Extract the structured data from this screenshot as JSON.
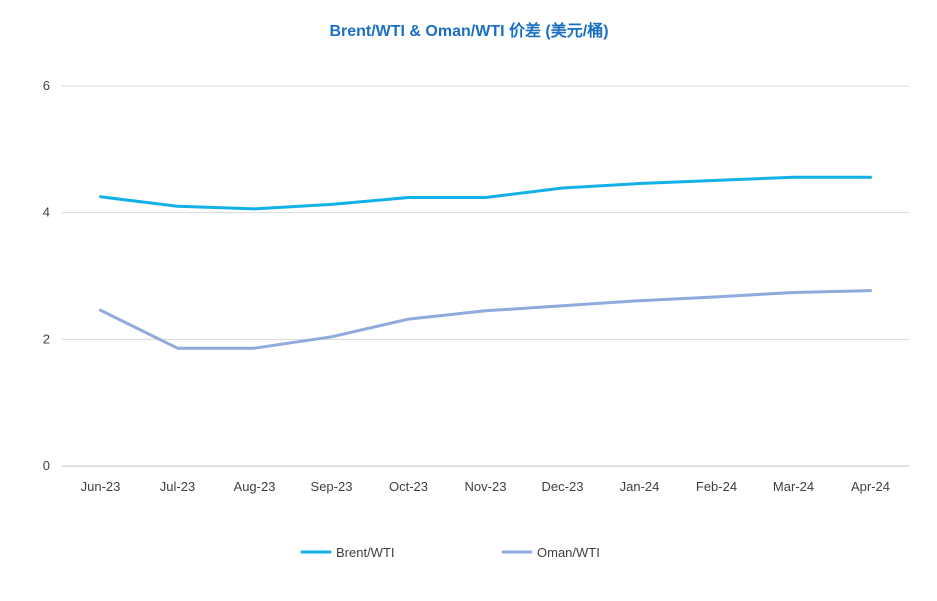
{
  "chart_data": {
    "type": "line",
    "title": "Brent/WTI & Oman/WTI 价差 (美元/桶)",
    "xlabel": "",
    "ylabel": "",
    "categories": [
      "Jun-23",
      "Jul-23",
      "Aug-23",
      "Sep-23",
      "Oct-23",
      "Nov-23",
      "Dec-23",
      "Jan-24",
      "Feb-24",
      "Mar-24",
      "Apr-24"
    ],
    "y_ticks": [
      "0",
      "2",
      "4",
      "6"
    ],
    "ylim": [
      0,
      6
    ],
    "grid": true,
    "legend_position": "bottom",
    "title_color": "#1a6fc2",
    "series": [
      {
        "name": "Brent/WTI",
        "color": "#12b0e8",
        "values": [
          4.25,
          4.1,
          4.06,
          4.13,
          4.24,
          4.24,
          4.39,
          4.46,
          4.51,
          4.56,
          4.56
        ]
      },
      {
        "name": "Oman/WTI",
        "color": "#8faadc",
        "values": [
          2.46,
          1.86,
          1.86,
          2.04,
          2.32,
          2.45,
          2.53,
          2.61,
          2.67,
          2.74,
          2.77
        ]
      }
    ]
  }
}
